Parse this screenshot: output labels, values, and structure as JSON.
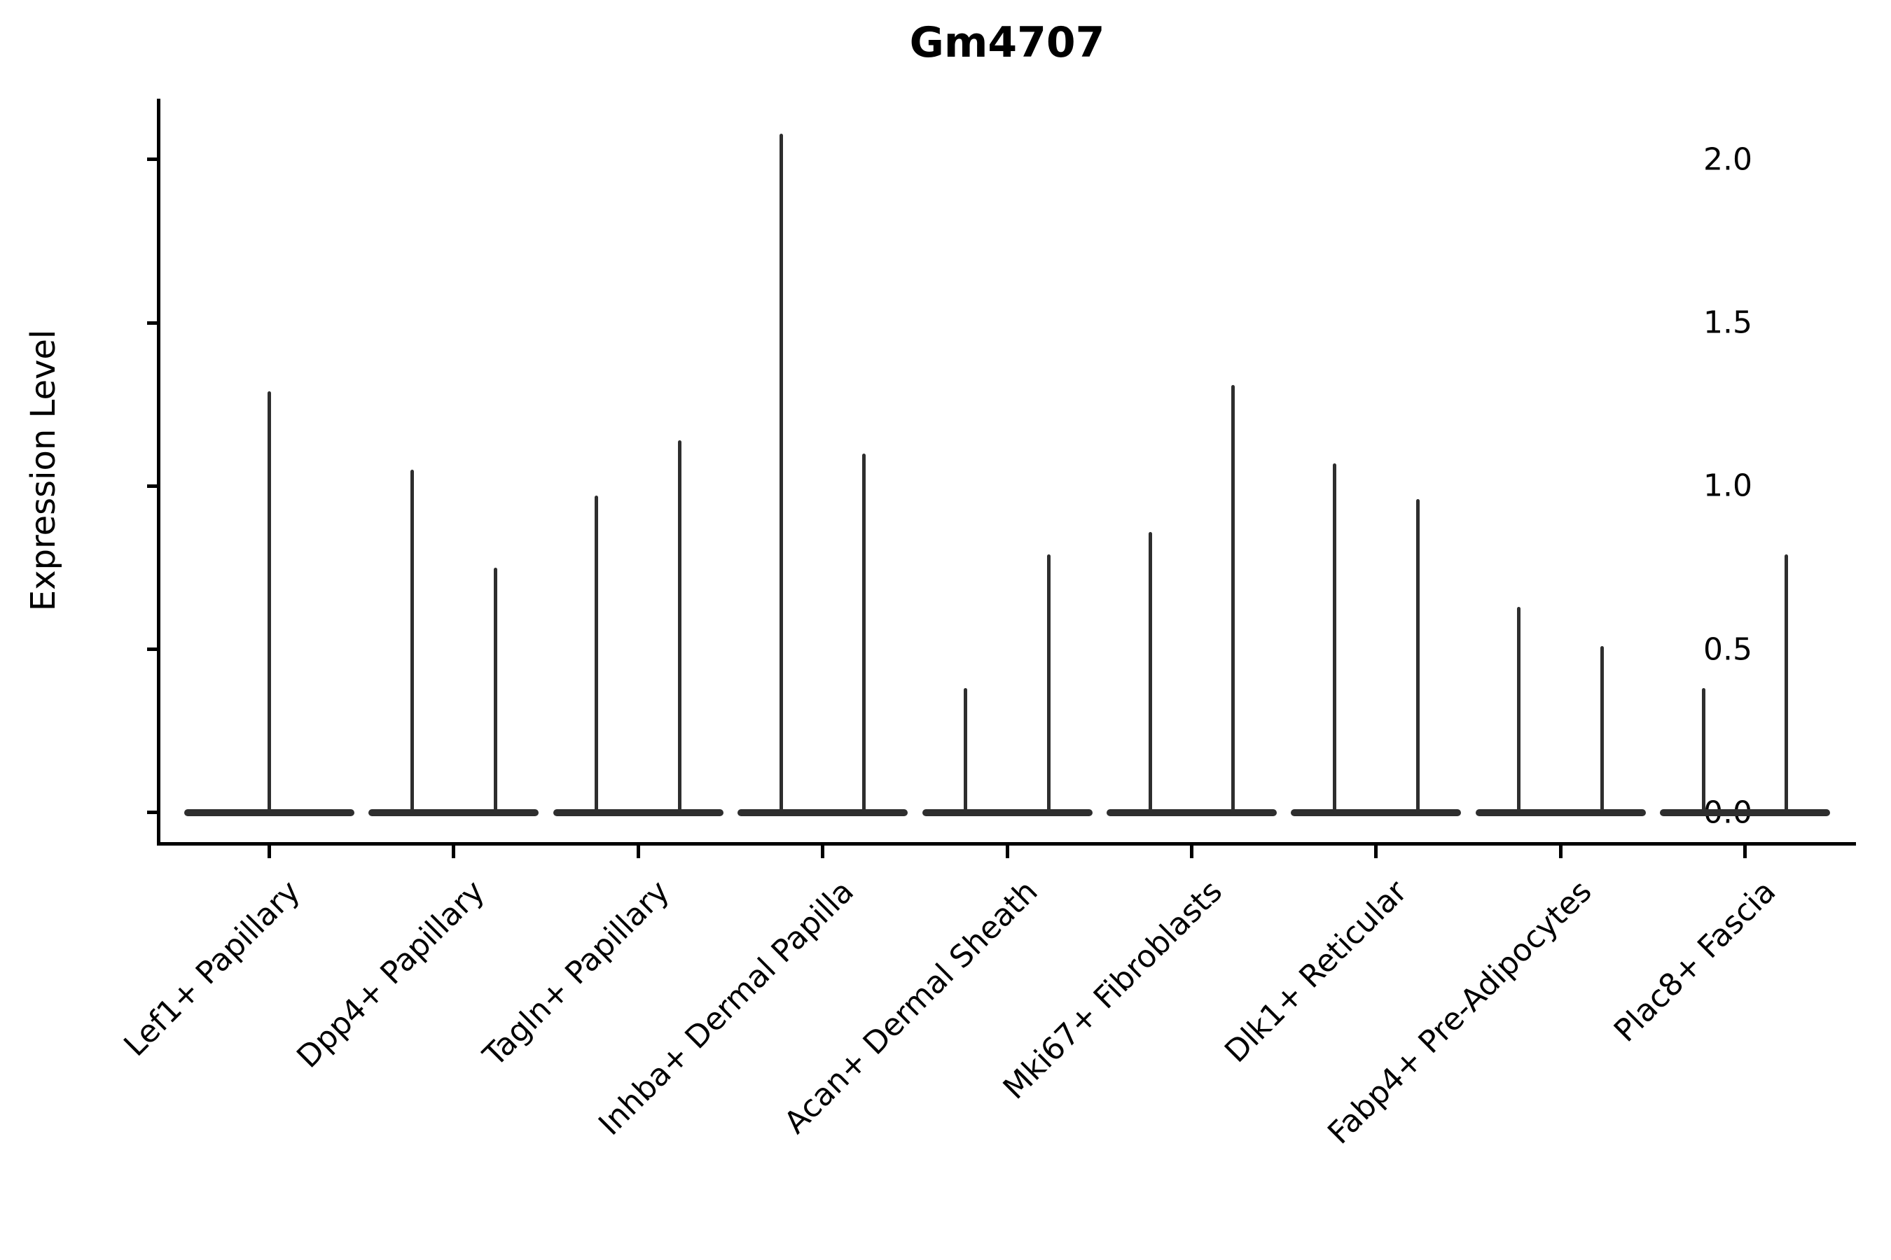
{
  "title": "Gm4707",
  "axis": {
    "ylabel": "Expression Level",
    "ytick_labels": [
      "0.0",
      "0.5",
      "1.0",
      "1.5",
      "2.0"
    ],
    "line_color": "#000000",
    "violin_color": "#2e2e2e"
  },
  "chart_data": {
    "type": "violin",
    "title": "Gm4707",
    "xlabel": "",
    "ylabel": "Expression Level",
    "ylim": [
      -0.09,
      2.19
    ],
    "yticks": [
      0.0,
      0.5,
      1.0,
      1.5,
      2.0
    ],
    "grid": false,
    "legend": "none",
    "description": "Single-cell expression violin plot; each violin is collapsed flat at 0 (most cells zero) with a thin vertical tail reaching the maximum expression value. First category shows one wide violin; all other categories show two narrow side-by-side violins.",
    "body_value": 0.0,
    "categories": [
      "Lef1+ Papillary",
      "Dpp4+ Papillary",
      "Tagln+ Papillary",
      "Inhba+ Dermal Papilla",
      "Acan+ Dermal Sheath",
      "Mki67+ Fibroblasts",
      "Dlk1+ Reticular",
      "Fabp4+ Pre-Adipocytes",
      "Plac8+ Fascia"
    ],
    "spike_max_values": [
      [
        1.29
      ],
      [
        1.05,
        0.75
      ],
      [
        0.97,
        1.14
      ],
      [
        2.08,
        1.1
      ],
      [
        0.38,
        0.79
      ],
      [
        0.86,
        1.31
      ],
      [
        1.07,
        0.96
      ],
      [
        0.63,
        0.51
      ],
      [
        0.38,
        0.79
      ]
    ]
  }
}
